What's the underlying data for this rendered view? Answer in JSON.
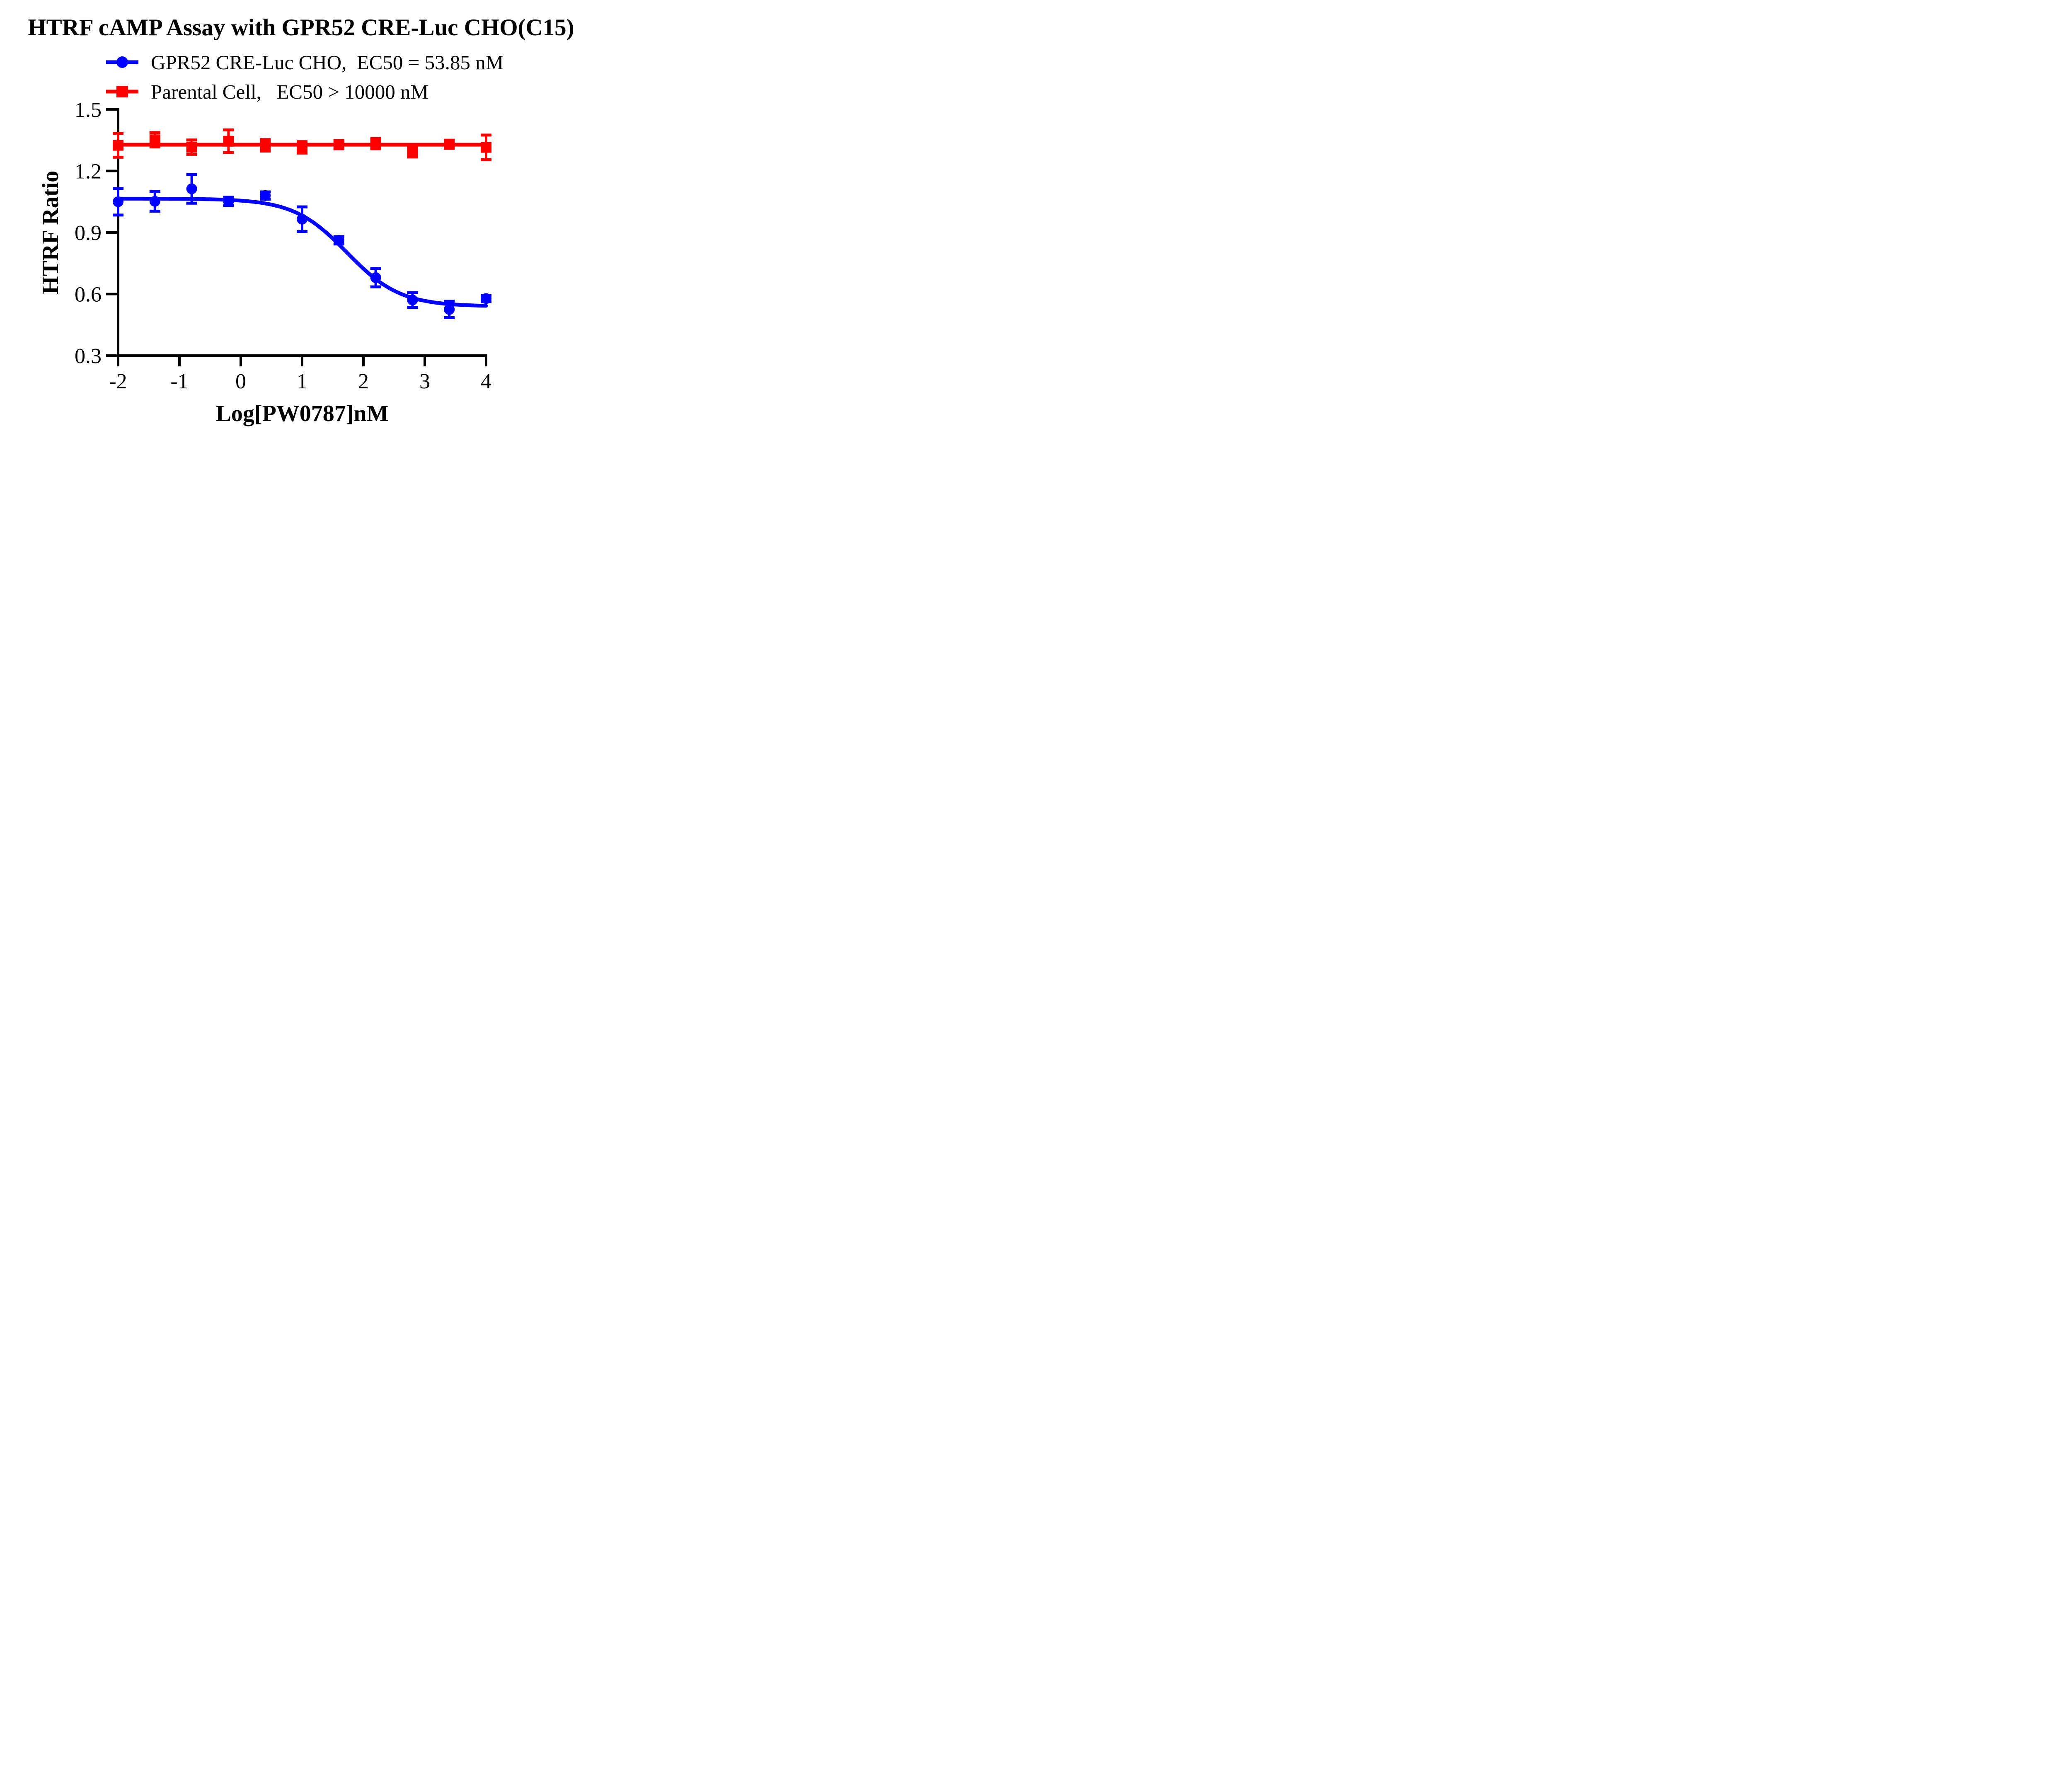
{
  "chart_data": {
    "type": "line",
    "title": "HTRF cAMP Assay with GPR52 CRE-Luc CHO(C15)",
    "xlabel": "Log[PW0787]nM",
    "ylabel": "HTRF Ratio",
    "xlim": [
      -2,
      4
    ],
    "ylim": [
      0.3,
      1.5
    ],
    "xticks": [
      "-2",
      "-1",
      "0",
      "1",
      "2",
      "3",
      "4"
    ],
    "yticks": [
      "1.5",
      "1.2",
      "0.9",
      "0.6",
      "0.3"
    ],
    "grid": false,
    "legend_position": "top-left above plot",
    "axis_color": "#000000",
    "x": [
      -2,
      -1.4,
      -0.8,
      -0.2,
      0.4,
      1,
      1.6,
      2.2,
      2.8,
      3.4,
      4
    ],
    "series": [
      {
        "name": "GPR52 CRE-Luc CHO",
        "legend": "GPR52 CRE-Luc CHO,  EC50 = 53.85 nM",
        "color": "#0000fe",
        "marker": "circle",
        "values": [
          1.05,
          1.052,
          1.113,
          1.052,
          1.08,
          0.965,
          0.862,
          0.68,
          0.571,
          0.525,
          0.578
        ],
        "errors": [
          0.065,
          0.048,
          0.07,
          0.02,
          0.018,
          0.06,
          0.018,
          0.045,
          0.036,
          0.04,
          0.015
        ],
        "fit": {
          "type": "4PL",
          "top": 1.065,
          "bottom": 0.54,
          "logEC50": 1.731,
          "hill": 1.0
        }
      },
      {
        "name": "Parental Cell",
        "legend": "Parental Cell,   EC50 > 10000 nM",
        "color": "#fe0000",
        "marker": "square",
        "values": [
          1.325,
          1.352,
          1.316,
          1.345,
          1.325,
          1.315,
          1.328,
          1.333,
          1.298,
          1.33,
          1.315
        ],
        "errors": [
          0.058,
          0.035,
          0.035,
          0.055,
          0.028,
          0.028,
          0.02,
          0.025,
          0.03,
          0.02,
          0.06
        ],
        "fit": {
          "type": "flat",
          "y": 1.328
        }
      }
    ]
  }
}
